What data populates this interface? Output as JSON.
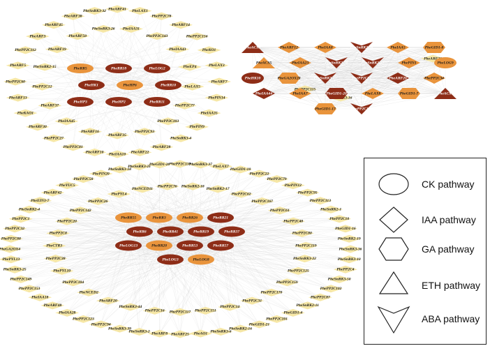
{
  "colors": {
    "light": "#f6e7a6",
    "mid": "#e9943c",
    "dark": "#8e2d17",
    "edge": "#cfcfcf"
  },
  "legend": {
    "items": [
      {
        "shape": "ellipse",
        "label": "CK pathway"
      },
      {
        "shape": "diamond",
        "label": "IAA pathway"
      },
      {
        "shape": "hexagon",
        "label": "GA pathway"
      },
      {
        "shape": "triangle",
        "label": "ETH pathway"
      },
      {
        "shape": "chevron",
        "label": "ABA pathway"
      }
    ]
  },
  "networks": [
    {
      "hubs": [
        {
          "id": "PheRR5",
          "shape": "ellipse",
          "color": "mid"
        },
        {
          "id": "PheRR18",
          "shape": "ellipse",
          "color": "dark"
        },
        {
          "id": "PheLOG2",
          "shape": "ellipse",
          "color": "dark"
        },
        {
          "id": "PheHK1",
          "shape": "ellipse",
          "color": "dark"
        },
        {
          "id": "PheHP6",
          "shape": "ellipse",
          "color": "mid"
        },
        {
          "id": "PheRR10",
          "shape": "ellipse",
          "color": "dark"
        },
        {
          "id": "PheHP3",
          "shape": "ellipse",
          "color": "dark"
        },
        {
          "id": "PheHP2",
          "shape": "ellipse",
          "color": "dark"
        },
        {
          "id": "PheRR11",
          "shape": "ellipse",
          "color": "dark"
        }
      ],
      "periphery": [
        "PheARF41",
        "PheLAX1",
        "PhePP2C78",
        "PheARF14",
        "PhePP2C156",
        "PheKO1",
        "PheLAX3",
        "PheARF7",
        "PhePIN14",
        "PheIAA35",
        "PhePIN9",
        "PheSnRK3-4",
        "PheARF28",
        "PheARF22",
        "PheIAA10",
        "PheARF10",
        "PhePP2C81",
        "PhePP2C27",
        "PheARF30",
        "PheKAO1",
        "PheARF13",
        "PhePP2C60",
        "PheARF5",
        "PhePP2C112",
        "PheARF3",
        "PheARF45",
        "PheARF38",
        "PheSnRK3-32",
        "PheIAA31",
        "PhePP2C143",
        "PheIAA43",
        "PheEP4",
        "PheLAX5",
        "PhePP2C77",
        "PhePP2C103",
        "PhePP2C93",
        "PheARF35",
        "PheARF16",
        "PheIAA45",
        "PheARF37",
        "PhePP2C12",
        "PheSnRK2-15",
        "PheARF19",
        "PheARF50",
        "PheSnRK3-26"
      ]
    },
    {
      "hubs": [
        {
          "id": "PheACS9",
          "shape": "triangle",
          "color": "dark"
        },
        {
          "id": "PheARF12",
          "shape": "diamond",
          "color": "mid"
        },
        {
          "id": "PheIAA8",
          "shape": "diamond",
          "color": "mid"
        },
        {
          "id": "PheSnRK2-58",
          "shape": "chevron",
          "color": "dark"
        },
        {
          "id": "PheIAA5",
          "shape": "diamond",
          "color": "mid"
        },
        {
          "id": "PheGID1-8",
          "shape": "hexagon",
          "color": "mid"
        },
        {
          "id": "PheACS5",
          "shape": "triangle",
          "color": "mid"
        },
        {
          "id": "PheIAA23",
          "shape": "diamond",
          "color": "mid"
        },
        {
          "id": "PheSnRK2-38",
          "shape": "chevron",
          "color": "dark"
        },
        {
          "id": "PheSnRK2-47",
          "shape": "chevron",
          "color": "dark"
        },
        {
          "id": "PhePIN1",
          "shape": "diamond",
          "color": "mid"
        },
        {
          "id": "PheLOG9",
          "shape": "ellipse",
          "color": "mid"
        },
        {
          "id": "PheHK10",
          "shape": "ellipse",
          "color": "dark"
        },
        {
          "id": "PheGA2OX20",
          "shape": "hexagon",
          "color": "mid"
        },
        {
          "id": "PheSnRK3-41",
          "shape": "chevron",
          "color": "dark"
        },
        {
          "id": "PhePP2C24",
          "shape": "chevron",
          "color": "dark"
        },
        {
          "id": "PheARF26",
          "shape": "diamond",
          "color": "dark"
        },
        {
          "id": "PhePP2C34",
          "shape": "diamond",
          "color": "mid"
        },
        {
          "id": "PheIAA44",
          "shape": "diamond",
          "color": "dark"
        },
        {
          "id": "PheIAA7",
          "shape": "diamond",
          "color": "mid"
        },
        {
          "id": "PheGID1-20",
          "shape": "hexagon",
          "color": "dark"
        },
        {
          "id": "PheLAX8",
          "shape": "diamond",
          "color": "mid"
        },
        {
          "id": "PheGID1-7",
          "shape": "hexagon",
          "color": "mid"
        },
        {
          "id": "PheACS1",
          "shape": "triangle",
          "color": "dark"
        },
        {
          "id": "PheGID1-17",
          "shape": "hexagon",
          "color": "mid"
        },
        {
          "id": "PhePP2C109",
          "shape": "chevron",
          "color": "dark"
        }
      ],
      "periphery": [
        "PheARF32",
        "PhePP2C115",
        "PheSnRK3-16"
      ]
    },
    {
      "hubs": [
        {
          "id": "PheRR55",
          "shape": "ellipse",
          "color": "mid"
        },
        {
          "id": "PheRR3",
          "shape": "ellipse",
          "color": "mid"
        },
        {
          "id": "PheRR26",
          "shape": "ellipse",
          "color": "mid"
        },
        {
          "id": "PheRR21",
          "shape": "ellipse",
          "color": "dark"
        },
        {
          "id": "PheRR6",
          "shape": "ellipse",
          "color": "dark"
        },
        {
          "id": "PheRR41",
          "shape": "ellipse",
          "color": "dark"
        },
        {
          "id": "PheRR19",
          "shape": "ellipse",
          "color": "dark"
        },
        {
          "id": "PheRR37",
          "shape": "ellipse",
          "color": "dark"
        },
        {
          "id": "PheLOG13",
          "shape": "ellipse",
          "color": "dark"
        },
        {
          "id": "PheRR20",
          "shape": "ellipse",
          "color": "mid"
        },
        {
          "id": "PheRR53",
          "shape": "ellipse",
          "color": "dark"
        },
        {
          "id": "PheRR57",
          "shape": "ellipse",
          "color": "dark"
        },
        {
          "id": "PheLOG3",
          "shape": "ellipse",
          "color": "dark"
        },
        {
          "id": "PheLOG8",
          "shape": "ellipse",
          "color": "mid"
        }
      ],
      "periphery": [
        "PhePP2C139",
        "PheSnRK3-37",
        "PheLAX7",
        "PheGID1-10",
        "PhePP2C22",
        "PhePP2C79",
        "PhePIN12",
        "PhePP2C95",
        "PhePP2C113",
        "PheSnRK2-1",
        "PhePP2C10",
        "PheGID1-16",
        "PheSnRK2-19",
        "PheSnRK3-36",
        "PheSnRK3-10",
        "PhePP2C4",
        "PheSnRK3-50",
        "PhePP2C102",
        "PhePP2C87",
        "PheSnRK2-11",
        "PheGID1-4",
        "PhePP2C101",
        "PheGID1-21",
        "PheSnRK2-16",
        "PheSnRK3-6",
        "PheAO1",
        "PheARF25",
        "PheARF8",
        "PheSnRK3-2",
        "PheSnRK3-39",
        "PhePP2C94",
        "PhePP2C123",
        "PheIAA28",
        "PheARF48",
        "PheIAA18",
        "PhePP2C153",
        "PhePP2C149",
        "PheSnRK3-25",
        "PhePYL13",
        "PheGA2OX4",
        "PhePP2C88",
        "PhePP2C32",
        "PhePP2C1",
        "PheSnRK2-4",
        "PheEIN3-7",
        "PheARF42",
        "PheYUC5",
        "PhePP2C58",
        "PhePIN20",
        "PheSnRK3-18",
        "PheSnRK3-21",
        "PheGID1-20",
        "PheSnRK2-18",
        "PheSnRK2-17",
        "PhePP2C62",
        "PhePP2C167",
        "PhePP2C61",
        "PhePP2C48",
        "PhePP2C80",
        "PhePP2C119",
        "PheSnRK3-22",
        "PhePP2C125",
        "PhePP2C159",
        "PhePP2C170",
        "PhePP2C31",
        "PhePP2C14",
        "PhePP2C151",
        "PhePP2C117",
        "PhePP2C16",
        "PheSnRK3-44",
        "PheARF20",
        "PheNCED2",
        "PhePP2C104",
        "PhePYL10",
        "PhePP2C38",
        "PheCTR3",
        "PhePP2C8",
        "PhePP2C20",
        "PhePP2C142",
        "PhePP2C26",
        "PhePYL4",
        "PheNCED11",
        "PhePP2C76"
      ]
    }
  ]
}
